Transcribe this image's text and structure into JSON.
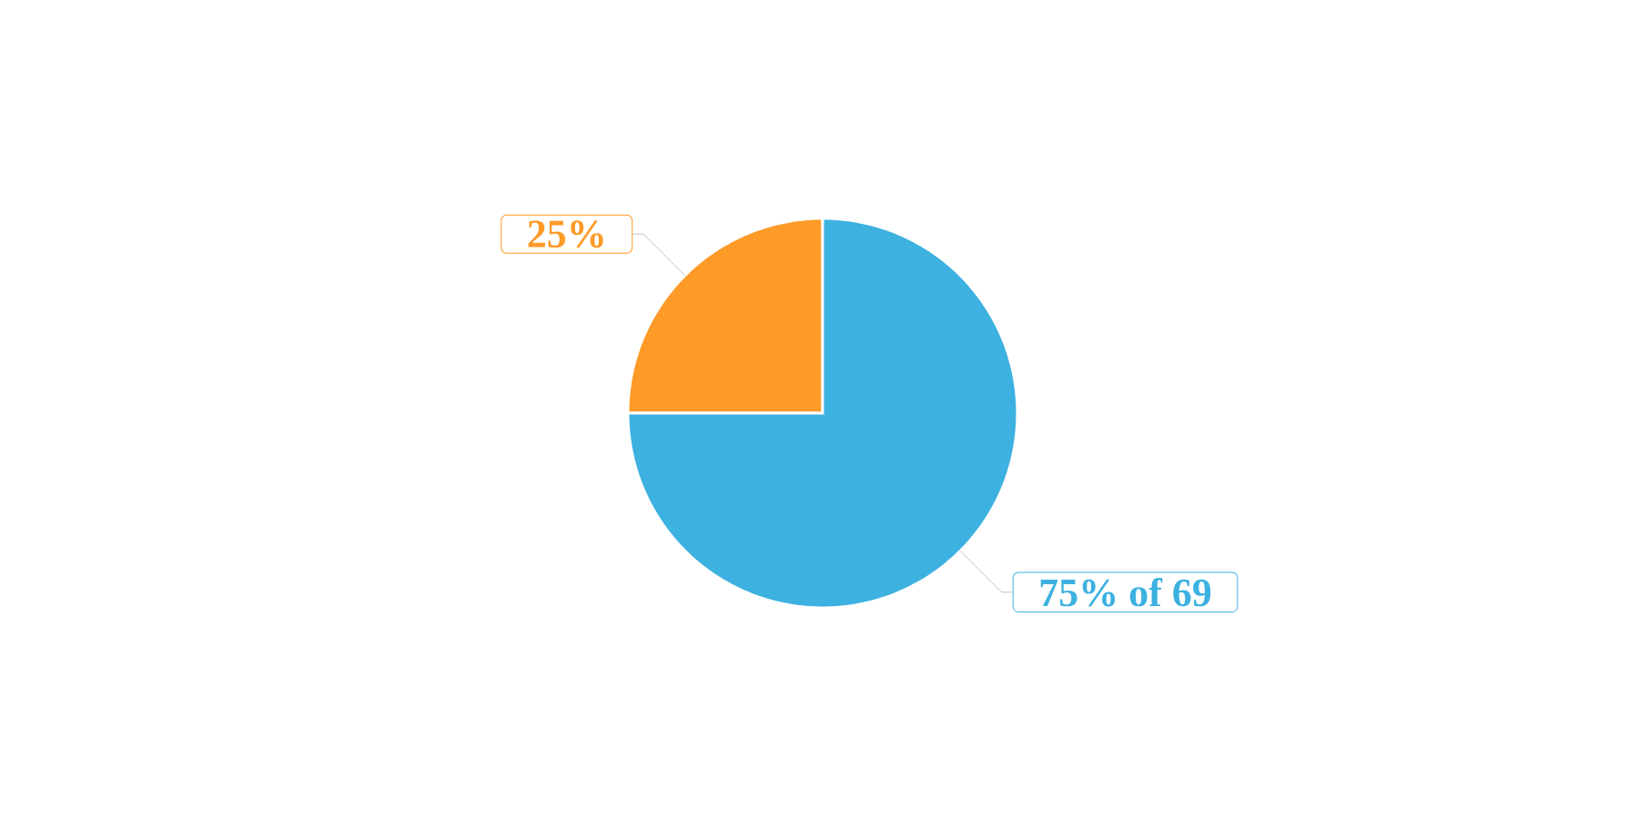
{
  "chart_data": {
    "type": "pie",
    "categories": [
      null,
      null
    ],
    "values": [
      25,
      75
    ],
    "colors": [
      "#fd9a28",
      "#3db1e0"
    ],
    "value_labels": [
      "25%",
      "75% of 69"
    ]
  }
}
